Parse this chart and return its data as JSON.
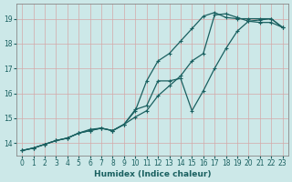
{
  "xlabel": "Humidex (Indice chaleur)",
  "bg_color": "#cce8e8",
  "grid_color": "#b8d8d8",
  "line_color": "#1a6060",
  "xlim": [
    -0.5,
    23.5
  ],
  "ylim": [
    13.5,
    19.6
  ],
  "xticks": [
    0,
    1,
    2,
    3,
    4,
    5,
    6,
    7,
    8,
    9,
    10,
    11,
    12,
    13,
    14,
    15,
    16,
    17,
    18,
    19,
    20,
    21,
    22,
    23
  ],
  "yticks": [
    14,
    15,
    16,
    17,
    18,
    19
  ],
  "line1_x": [
    0,
    1,
    2,
    3,
    4,
    5,
    6,
    7,
    8,
    9,
    10,
    11,
    12,
    13,
    14,
    15,
    16,
    17,
    18,
    19,
    20,
    21,
    22,
    23
  ],
  "line1_y": [
    13.7,
    13.8,
    13.95,
    14.1,
    14.2,
    14.4,
    14.5,
    14.6,
    14.5,
    14.75,
    15.3,
    16.5,
    17.3,
    17.6,
    18.1,
    18.6,
    19.1,
    19.25,
    19.05,
    19.0,
    19.0,
    19.0,
    19.0,
    18.65
  ],
  "line2_x": [
    0,
    1,
    2,
    3,
    4,
    5,
    6,
    7,
    8,
    9,
    10,
    11,
    12,
    13,
    14,
    15,
    16,
    17,
    18,
    19,
    20,
    21,
    22,
    23
  ],
  "line2_y": [
    13.7,
    13.8,
    13.95,
    14.1,
    14.2,
    14.4,
    14.5,
    14.6,
    14.5,
    14.75,
    15.05,
    15.3,
    15.9,
    16.3,
    16.7,
    17.3,
    17.6,
    19.15,
    19.2,
    19.05,
    18.9,
    18.85,
    18.85,
    18.65
  ],
  "line3_x": [
    0,
    1,
    2,
    3,
    4,
    5,
    6,
    7,
    8,
    9,
    10,
    11,
    12,
    13,
    14,
    15,
    16,
    17,
    18,
    19,
    20,
    21,
    22,
    23
  ],
  "line3_y": [
    13.7,
    13.8,
    13.95,
    14.1,
    14.2,
    14.4,
    14.55,
    14.6,
    14.5,
    14.75,
    15.35,
    15.5,
    16.5,
    16.5,
    16.6,
    15.3,
    16.1,
    17.0,
    17.8,
    18.5,
    18.9,
    18.95,
    19.0,
    18.65
  ]
}
